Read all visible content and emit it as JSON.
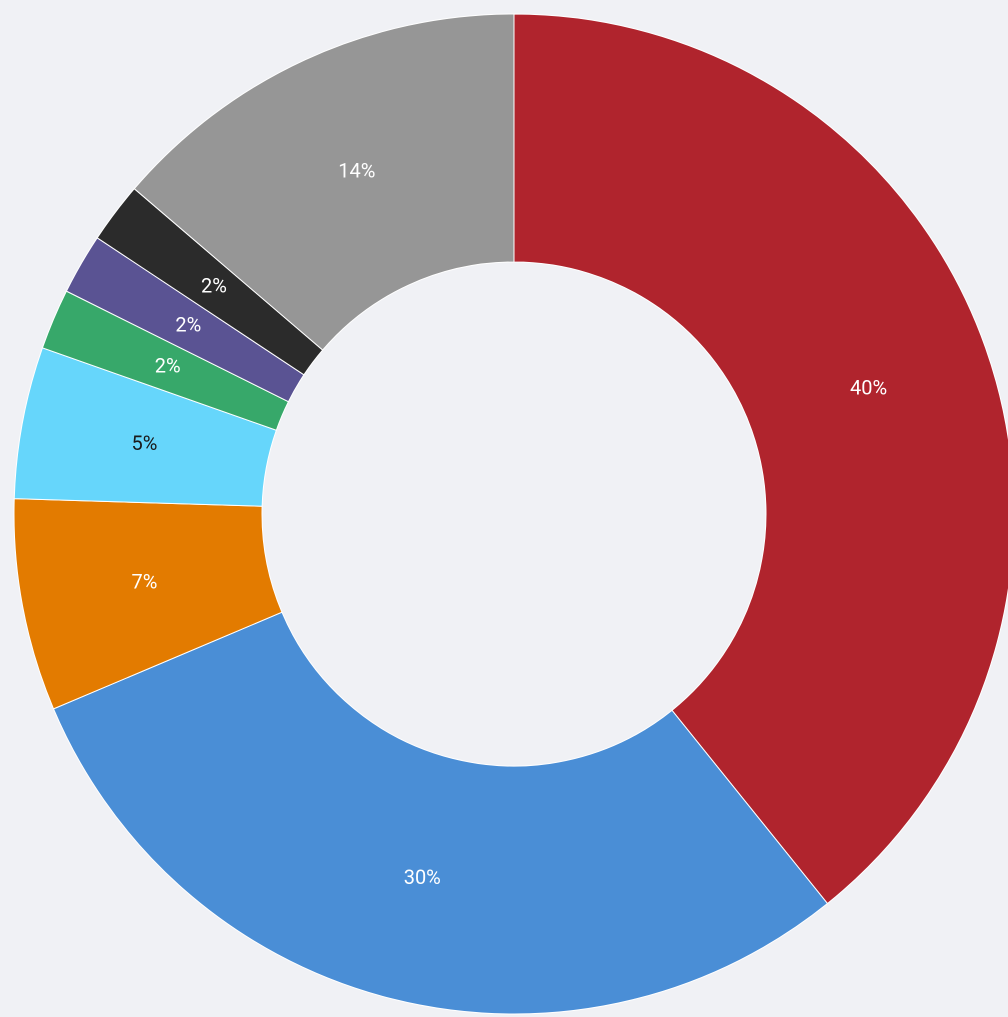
{
  "chart_data": {
    "type": "donut",
    "values": [
      40,
      30,
      7,
      5,
      2,
      2,
      2,
      14
    ],
    "value_labels": [
      "40%",
      "30%",
      "7%",
      "5%",
      "2%",
      "2%",
      "2%",
      "14%"
    ],
    "colors": [
      "#b0242d",
      "#4a8ed6",
      "#e37b00",
      "#66d6fb",
      "#37a86a",
      "#5a5393",
      "#2b2b2b",
      "#969696"
    ]
  }
}
